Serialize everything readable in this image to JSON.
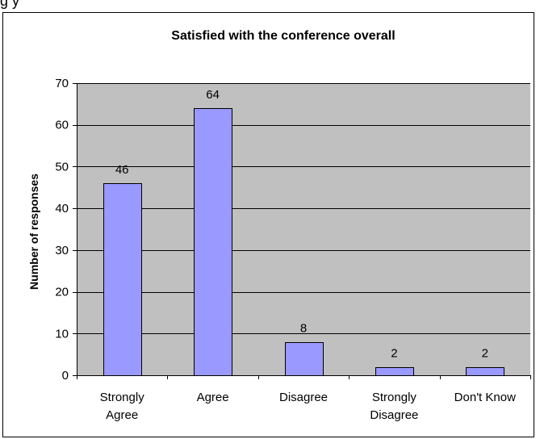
{
  "page": {
    "top_text": "g         y"
  },
  "chart_data": {
    "type": "bar",
    "title": "Satisfied with the conference overall",
    "ylabel": "Number of responses",
    "xlabel": "",
    "categories": [
      [
        "Strongly",
        "Agree"
      ],
      [
        "Agree"
      ],
      [
        "Disagree"
      ],
      [
        "Strongly",
        "Disagree"
      ],
      [
        "Don't Know"
      ]
    ],
    "values": [
      46,
      64,
      8,
      2,
      2
    ],
    "data_labels": [
      "46",
      "64",
      "8",
      "2",
      "2"
    ],
    "ylim": [
      0,
      70
    ],
    "yticks": [
      0,
      10,
      20,
      30,
      40,
      50,
      60,
      70
    ],
    "ytick_labels": [
      "0",
      "10",
      "20",
      "30",
      "40",
      "50",
      "60",
      "70"
    ],
    "grid": true,
    "legend": "none",
    "colors": {
      "plot_background": "#c0c0c0",
      "bar_fill": "#9999ff",
      "bar_stroke": "#000000",
      "gridline": "#000000"
    }
  }
}
